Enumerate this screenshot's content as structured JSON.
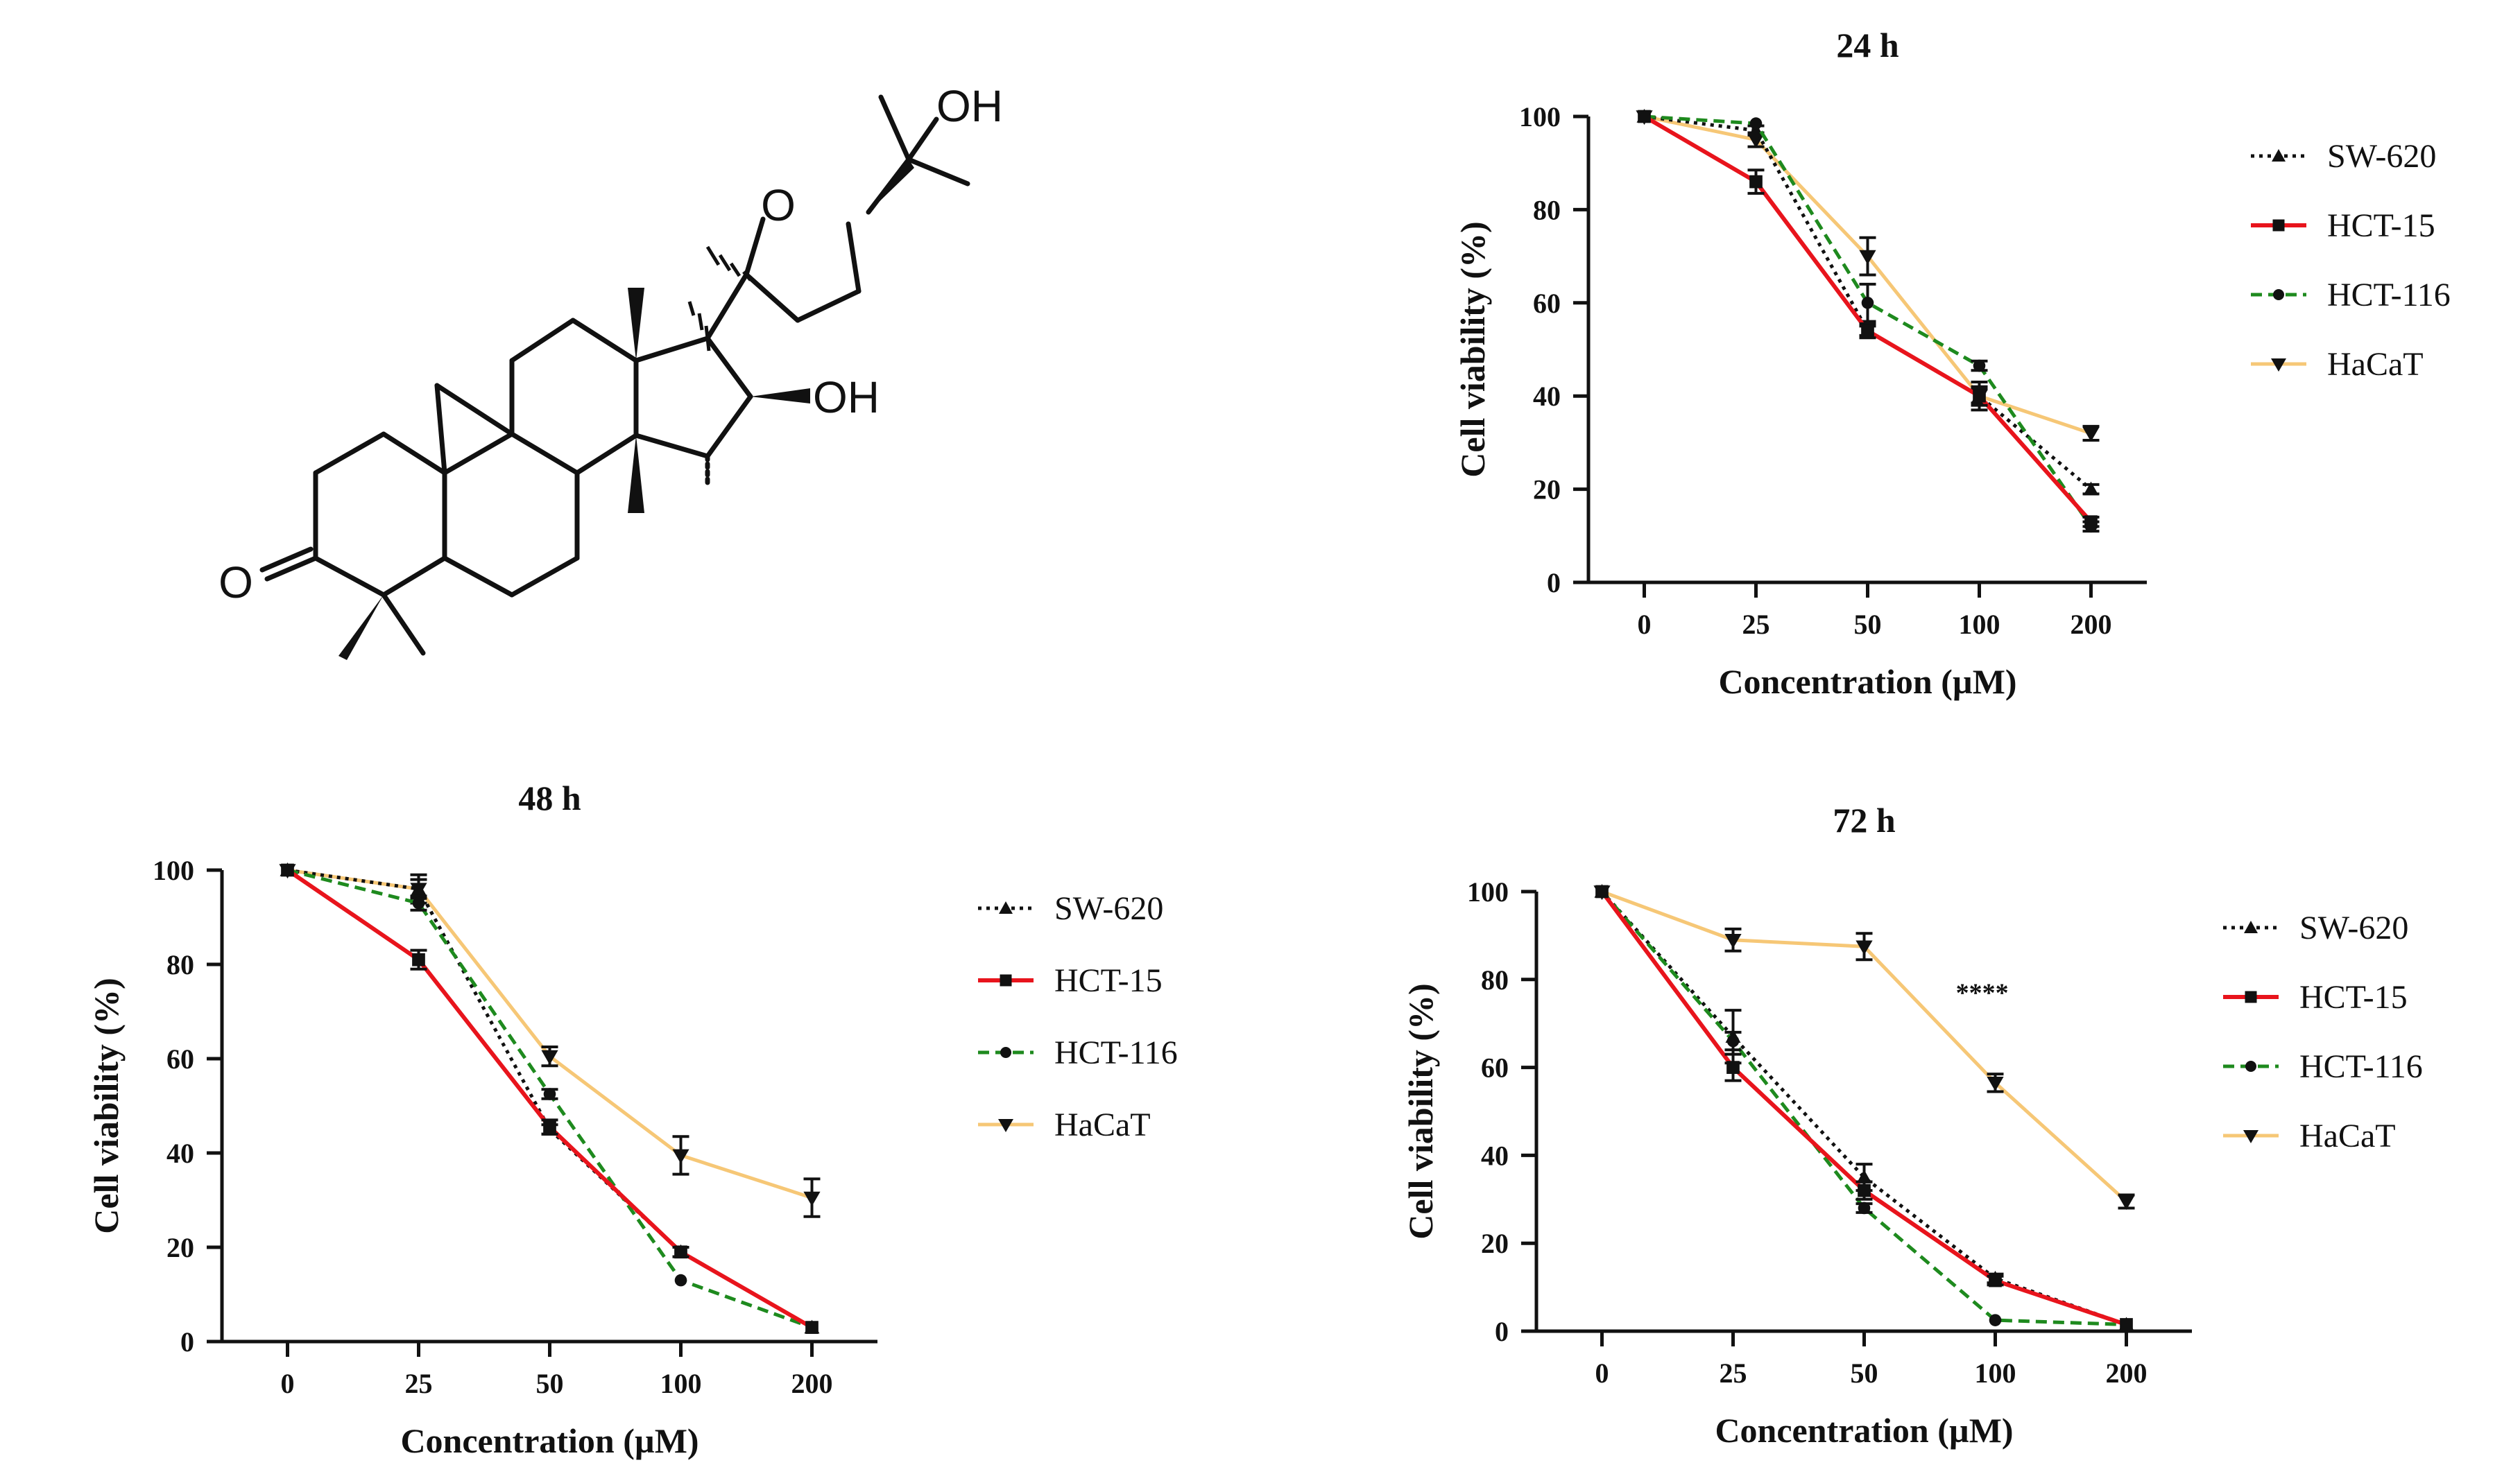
{
  "figure": {
    "structure": {
      "atom_labels": {
        "ketone_o": "O",
        "ring_o": "O",
        "hydroxyl_side": "OH",
        "hydroxyl_ring": "OH"
      }
    }
  },
  "colors": {
    "SW-620": "#111111",
    "HCT-15": "#e8141c",
    "HCT-116": "#1e8a1e",
    "HaCaT": "#f6c776",
    "axis": "#111111"
  },
  "chart_data": [
    {
      "id": "p24",
      "type": "line",
      "title": "24 h",
      "xlabel": "Concentration (µM)",
      "ylabel": "Cell viability (%)",
      "categories": [
        "0",
        "25",
        "50",
        "100",
        "200"
      ],
      "ylim": [
        0,
        100
      ],
      "yticks": [
        "0",
        "20",
        "40",
        "60",
        "80",
        "100"
      ],
      "legend_position": "right",
      "annotation": "",
      "series": [
        {
          "name": "SW-620",
          "values": [
            100,
            97,
            54,
            40,
            20
          ],
          "errors": [
            0.5,
            1,
            1,
            1.5,
            1
          ]
        },
        {
          "name": "HCT-15",
          "values": [
            100,
            86,
            54,
            40,
            13
          ],
          "errors": [
            0.5,
            2.5,
            1.5,
            2,
            1
          ]
        },
        {
          "name": "HCT-116",
          "values": [
            100,
            98.5,
            60,
            46.5,
            12
          ],
          "errors": [
            0.5,
            0.5,
            4,
            1,
            1
          ]
        },
        {
          "name": "HaCaT",
          "values": [
            100,
            95,
            70,
            40,
            32
          ],
          "errors": [
            0.5,
            1.5,
            4,
            3,
            1.5
          ]
        }
      ]
    },
    {
      "id": "p48",
      "type": "line",
      "title": "48 h",
      "xlabel": "Concentration (µM)",
      "ylabel": "Cell viability (%)",
      "categories": [
        "0",
        "25",
        "50",
        "100",
        "200"
      ],
      "ylim": [
        0,
        100
      ],
      "yticks": [
        "0",
        "20",
        "40",
        "60",
        "80",
        "100"
      ],
      "legend_position": "right",
      "annotation": "",
      "series": [
        {
          "name": "SW-620",
          "values": [
            100,
            96,
            45,
            19,
            3
          ],
          "errors": [
            0.5,
            3,
            1,
            1,
            0.5
          ]
        },
        {
          "name": "HCT-15",
          "values": [
            100,
            81,
            45.5,
            19,
            3
          ],
          "errors": [
            0.5,
            2,
            1.5,
            1,
            0.5
          ]
        },
        {
          "name": "HCT-116",
          "values": [
            100,
            93,
            52.5,
            13,
            3
          ],
          "errors": [
            0.5,
            1.5,
            1,
            0.5,
            0.5
          ]
        },
        {
          "name": "HaCaT",
          "values": [
            100,
            96,
            60.5,
            39.5,
            30.5
          ],
          "errors": [
            0.5,
            2,
            2,
            4,
            4
          ]
        }
      ]
    },
    {
      "id": "p72",
      "type": "line",
      "title": "72 h",
      "xlabel": "Concentration (µM)",
      "ylabel": "Cell viability (%)",
      "categories": [
        "0",
        "25",
        "50",
        "100",
        "200"
      ],
      "ylim": [
        0,
        100
      ],
      "yticks": [
        "0",
        "20",
        "40",
        "60",
        "80",
        "100"
      ],
      "legend_position": "right",
      "annotation": "****",
      "annotation_x": 2.9,
      "annotation_y": 75,
      "series": [
        {
          "name": "SW-620",
          "values": [
            100,
            67,
            35,
            12,
            1.5
          ],
          "errors": [
            0.5,
            6,
            3,
            1,
            0.5
          ]
        },
        {
          "name": "HCT-15",
          "values": [
            100,
            60,
            32,
            11.5,
            1.5
          ],
          "errors": [
            0.5,
            3,
            2,
            1,
            0.5
          ]
        },
        {
          "name": "HCT-116",
          "values": [
            100,
            66,
            28,
            2.5,
            1.5
          ],
          "errors": [
            0.5,
            2,
            1,
            0.5,
            0.5
          ]
        },
        {
          "name": "HaCaT",
          "values": [
            100,
            89,
            87.5,
            56.5,
            29.5
          ],
          "errors": [
            0.5,
            2.5,
            3,
            2,
            1.5
          ]
        }
      ]
    }
  ]
}
